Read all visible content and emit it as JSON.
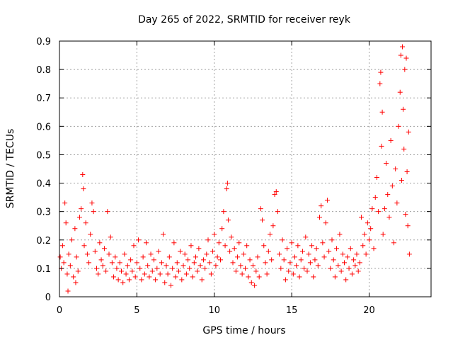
{
  "chart_data": {
    "type": "scatter",
    "title": "Day 265 of 2022, SRMTID for receiver reyk",
    "xlabel": "GPS time / hours",
    "ylabel": "SRMTID / TECUs",
    "xlim": [
      0,
      24
    ],
    "ylim": [
      0,
      0.9
    ],
    "x_ticks": [
      0,
      5,
      10,
      15,
      20
    ],
    "x_tick_labels": [
      "0",
      "5",
      "10",
      "15",
      "20"
    ],
    "y_ticks": [
      0,
      0.1,
      0.2,
      0.3,
      0.4,
      0.5,
      0.6,
      0.7,
      0.8,
      0.9
    ],
    "y_tick_labels": [
      "0",
      "0.1",
      "0.2",
      "0.3",
      "0.4",
      "0.5",
      "0.6",
      "0.7",
      "0.8",
      "0.9"
    ],
    "grid": true,
    "marker": "plus",
    "marker_color": "#ff0000",
    "series": [
      {
        "name": "SRMTID",
        "points": [
          [
            0.05,
            0.14
          ],
          [
            0.12,
            0.1
          ],
          [
            0.2,
            0.18
          ],
          [
            0.28,
            0.12
          ],
          [
            0.35,
            0.33
          ],
          [
            0.42,
            0.26
          ],
          [
            0.5,
            0.08
          ],
          [
            0.55,
            0.02
          ],
          [
            0.6,
            0.15
          ],
          [
            0.7,
            0.11
          ],
          [
            0.8,
            0.2
          ],
          [
            0.9,
            0.07
          ],
          [
            1.0,
            0.24
          ],
          [
            1.05,
            0.05
          ],
          [
            1.1,
            0.14
          ],
          [
            1.2,
            0.09
          ],
          [
            1.3,
            0.28
          ],
          [
            1.4,
            0.31
          ],
          [
            1.5,
            0.43
          ],
          [
            1.55,
            0.38
          ],
          [
            1.6,
            0.18
          ],
          [
            1.7,
            0.26
          ],
          [
            1.8,
            0.15
          ],
          [
            1.9,
            0.12
          ],
          [
            2.0,
            0.22
          ],
          [
            2.1,
            0.33
          ],
          [
            2.2,
            0.3
          ],
          [
            2.3,
            0.16
          ],
          [
            2.4,
            0.1
          ],
          [
            2.5,
            0.08
          ],
          [
            2.6,
            0.19
          ],
          [
            2.7,
            0.13
          ],
          [
            2.8,
            0.11
          ],
          [
            2.9,
            0.17
          ],
          [
            3.0,
            0.09
          ],
          [
            3.1,
            0.3
          ],
          [
            3.2,
            0.15
          ],
          [
            3.3,
            0.21
          ],
          [
            3.4,
            0.12
          ],
          [
            3.5,
            0.07
          ],
          [
            3.6,
            0.14
          ],
          [
            3.7,
            0.1
          ],
          [
            3.8,
            0.06
          ],
          [
            3.9,
            0.12
          ],
          [
            4.0,
            0.09
          ],
          [
            4.1,
            0.05
          ],
          [
            4.2,
            0.15
          ],
          [
            4.3,
            0.08
          ],
          [
            4.4,
            0.11
          ],
          [
            4.5,
            0.06
          ],
          [
            4.6,
            0.13
          ],
          [
            4.7,
            0.09
          ],
          [
            4.8,
            0.18
          ],
          [
            4.9,
            0.07
          ],
          [
            5.0,
            0.12
          ],
          [
            5.1,
            0.2
          ],
          [
            5.2,
            0.1
          ],
          [
            5.3,
            0.06
          ],
          [
            5.4,
            0.14
          ],
          [
            5.5,
            0.08
          ],
          [
            5.6,
            0.19
          ],
          [
            5.7,
            0.11
          ],
          [
            5.8,
            0.07
          ],
          [
            5.9,
            0.15
          ],
          [
            6.0,
            0.09
          ],
          [
            6.1,
            0.13
          ],
          [
            6.2,
            0.06
          ],
          [
            6.3,
            0.1
          ],
          [
            6.4,
            0.16
          ],
          [
            6.5,
            0.08
          ],
          [
            6.6,
            0.12
          ],
          [
            6.7,
            0.22
          ],
          [
            6.8,
            0.05
          ],
          [
            6.9,
            0.11
          ],
          [
            7.0,
            0.08
          ],
          [
            7.1,
            0.14
          ],
          [
            7.2,
            0.04
          ],
          [
            7.3,
            0.1
          ],
          [
            7.4,
            0.19
          ],
          [
            7.5,
            0.07
          ],
          [
            7.6,
            0.12
          ],
          [
            7.7,
            0.09
          ],
          [
            7.8,
            0.16
          ],
          [
            7.9,
            0.06
          ],
          [
            8.0,
            0.11
          ],
          [
            8.1,
            0.15
          ],
          [
            8.2,
            0.08
          ],
          [
            8.3,
            0.13
          ],
          [
            8.4,
            0.1
          ],
          [
            8.5,
            0.18
          ],
          [
            8.6,
            0.07
          ],
          [
            8.7,
            0.12
          ],
          [
            8.8,
            0.14
          ],
          [
            8.9,
            0.09
          ],
          [
            9.0,
            0.17
          ],
          [
            9.1,
            0.11
          ],
          [
            9.2,
            0.06
          ],
          [
            9.3,
            0.13
          ],
          [
            9.4,
            0.1
          ],
          [
            9.5,
            0.15
          ],
          [
            9.6,
            0.2
          ],
          [
            9.7,
            0.12
          ],
          [
            9.8,
            0.08
          ],
          [
            9.9,
            0.16
          ],
          [
            10.0,
            0.22
          ],
          [
            10.1,
            0.11
          ],
          [
            10.2,
            0.14
          ],
          [
            10.3,
            0.19
          ],
          [
            10.4,
            0.13
          ],
          [
            10.5,
            0.24
          ],
          [
            10.6,
            0.3
          ],
          [
            10.7,
            0.18
          ],
          [
            10.8,
            0.38
          ],
          [
            10.85,
            0.4
          ],
          [
            10.9,
            0.27
          ],
          [
            11.0,
            0.16
          ],
          [
            11.1,
            0.21
          ],
          [
            11.2,
            0.12
          ],
          [
            11.3,
            0.17
          ],
          [
            11.4,
            0.09
          ],
          [
            11.5,
            0.14
          ],
          [
            11.6,
            0.19
          ],
          [
            11.7,
            0.11
          ],
          [
            11.8,
            0.08
          ],
          [
            11.9,
            0.15
          ],
          [
            12.0,
            0.1
          ],
          [
            12.1,
            0.18
          ],
          [
            12.2,
            0.07
          ],
          [
            12.3,
            0.13
          ],
          [
            12.4,
            0.05
          ],
          [
            12.5,
            0.11
          ],
          [
            12.6,
            0.04
          ],
          [
            12.7,
            0.09
          ],
          [
            12.8,
            0.14
          ],
          [
            12.9,
            0.07
          ],
          [
            13.0,
            0.31
          ],
          [
            13.1,
            0.27
          ],
          [
            13.2,
            0.18
          ],
          [
            13.3,
            0.12
          ],
          [
            13.4,
            0.08
          ],
          [
            13.5,
            0.16
          ],
          [
            13.6,
            0.22
          ],
          [
            13.7,
            0.13
          ],
          [
            13.8,
            0.25
          ],
          [
            13.9,
            0.36
          ],
          [
            14.0,
            0.37
          ],
          [
            14.1,
            0.3
          ],
          [
            14.2,
            0.15
          ],
          [
            14.3,
            0.1
          ],
          [
            14.4,
            0.2
          ],
          [
            14.5,
            0.13
          ],
          [
            14.6,
            0.06
          ],
          [
            14.7,
            0.17
          ],
          [
            14.8,
            0.09
          ],
          [
            14.9,
            0.12
          ],
          [
            15.0,
            0.19
          ],
          [
            15.1,
            0.08
          ],
          [
            15.2,
            0.14
          ],
          [
            15.3,
            0.11
          ],
          [
            15.4,
            0.18
          ],
          [
            15.5,
            0.07
          ],
          [
            15.6,
            0.13
          ],
          [
            15.7,
            0.16
          ],
          [
            15.8,
            0.1
          ],
          [
            15.9,
            0.21
          ],
          [
            16.0,
            0.09
          ],
          [
            16.1,
            0.15
          ],
          [
            16.2,
            0.12
          ],
          [
            16.3,
            0.18
          ],
          [
            16.4,
            0.07
          ],
          [
            16.5,
            0.13
          ],
          [
            16.6,
            0.17
          ],
          [
            16.7,
            0.11
          ],
          [
            16.8,
            0.28
          ],
          [
            16.9,
            0.32
          ],
          [
            17.0,
            0.19
          ],
          [
            17.1,
            0.14
          ],
          [
            17.2,
            0.26
          ],
          [
            17.3,
            0.34
          ],
          [
            17.4,
            0.16
          ],
          [
            17.5,
            0.1
          ],
          [
            17.6,
            0.2
          ],
          [
            17.7,
            0.13
          ],
          [
            17.8,
            0.07
          ],
          [
            17.9,
            0.17
          ],
          [
            18.0,
            0.11
          ],
          [
            18.1,
            0.22
          ],
          [
            18.2,
            0.09
          ],
          [
            18.3,
            0.15
          ],
          [
            18.4,
            0.12
          ],
          [
            18.5,
            0.06
          ],
          [
            18.6,
            0.14
          ],
          [
            18.7,
            0.1
          ],
          [
            18.8,
            0.17
          ],
          [
            18.9,
            0.08
          ],
          [
            19.0,
            0.13
          ],
          [
            19.1,
            0.11
          ],
          [
            19.2,
            0.15
          ],
          [
            19.3,
            0.09
          ],
          [
            19.4,
            0.12
          ],
          [
            19.5,
            0.28
          ],
          [
            19.6,
            0.18
          ],
          [
            19.7,
            0.22
          ],
          [
            19.8,
            0.15
          ],
          [
            19.9,
            0.26
          ],
          [
            20.0,
            0.2
          ],
          [
            20.1,
            0.24
          ],
          [
            20.2,
            0.31
          ],
          [
            20.3,
            0.17
          ],
          [
            20.4,
            0.35
          ],
          [
            20.5,
            0.42
          ],
          [
            20.6,
            0.3
          ],
          [
            20.7,
            0.75
          ],
          [
            20.75,
            0.79
          ],
          [
            20.8,
            0.53
          ],
          [
            20.85,
            0.65
          ],
          [
            20.9,
            0.22
          ],
          [
            21.0,
            0.31
          ],
          [
            21.1,
            0.47
          ],
          [
            21.2,
            0.36
          ],
          [
            21.3,
            0.28
          ],
          [
            21.4,
            0.55
          ],
          [
            21.5,
            0.39
          ],
          [
            21.6,
            0.19
          ],
          [
            21.7,
            0.45
          ],
          [
            21.8,
            0.33
          ],
          [
            21.9,
            0.6
          ],
          [
            22.0,
            0.72
          ],
          [
            22.05,
            0.85
          ],
          [
            22.1,
            0.41
          ],
          [
            22.15,
            0.88
          ],
          [
            22.2,
            0.66
          ],
          [
            22.25,
            0.52
          ],
          [
            22.3,
            0.8
          ],
          [
            22.35,
            0.29
          ],
          [
            22.4,
            0.84
          ],
          [
            22.45,
            0.44
          ],
          [
            22.5,
            0.25
          ],
          [
            22.55,
            0.58
          ],
          [
            22.6,
            0.15
          ]
        ]
      }
    ]
  }
}
